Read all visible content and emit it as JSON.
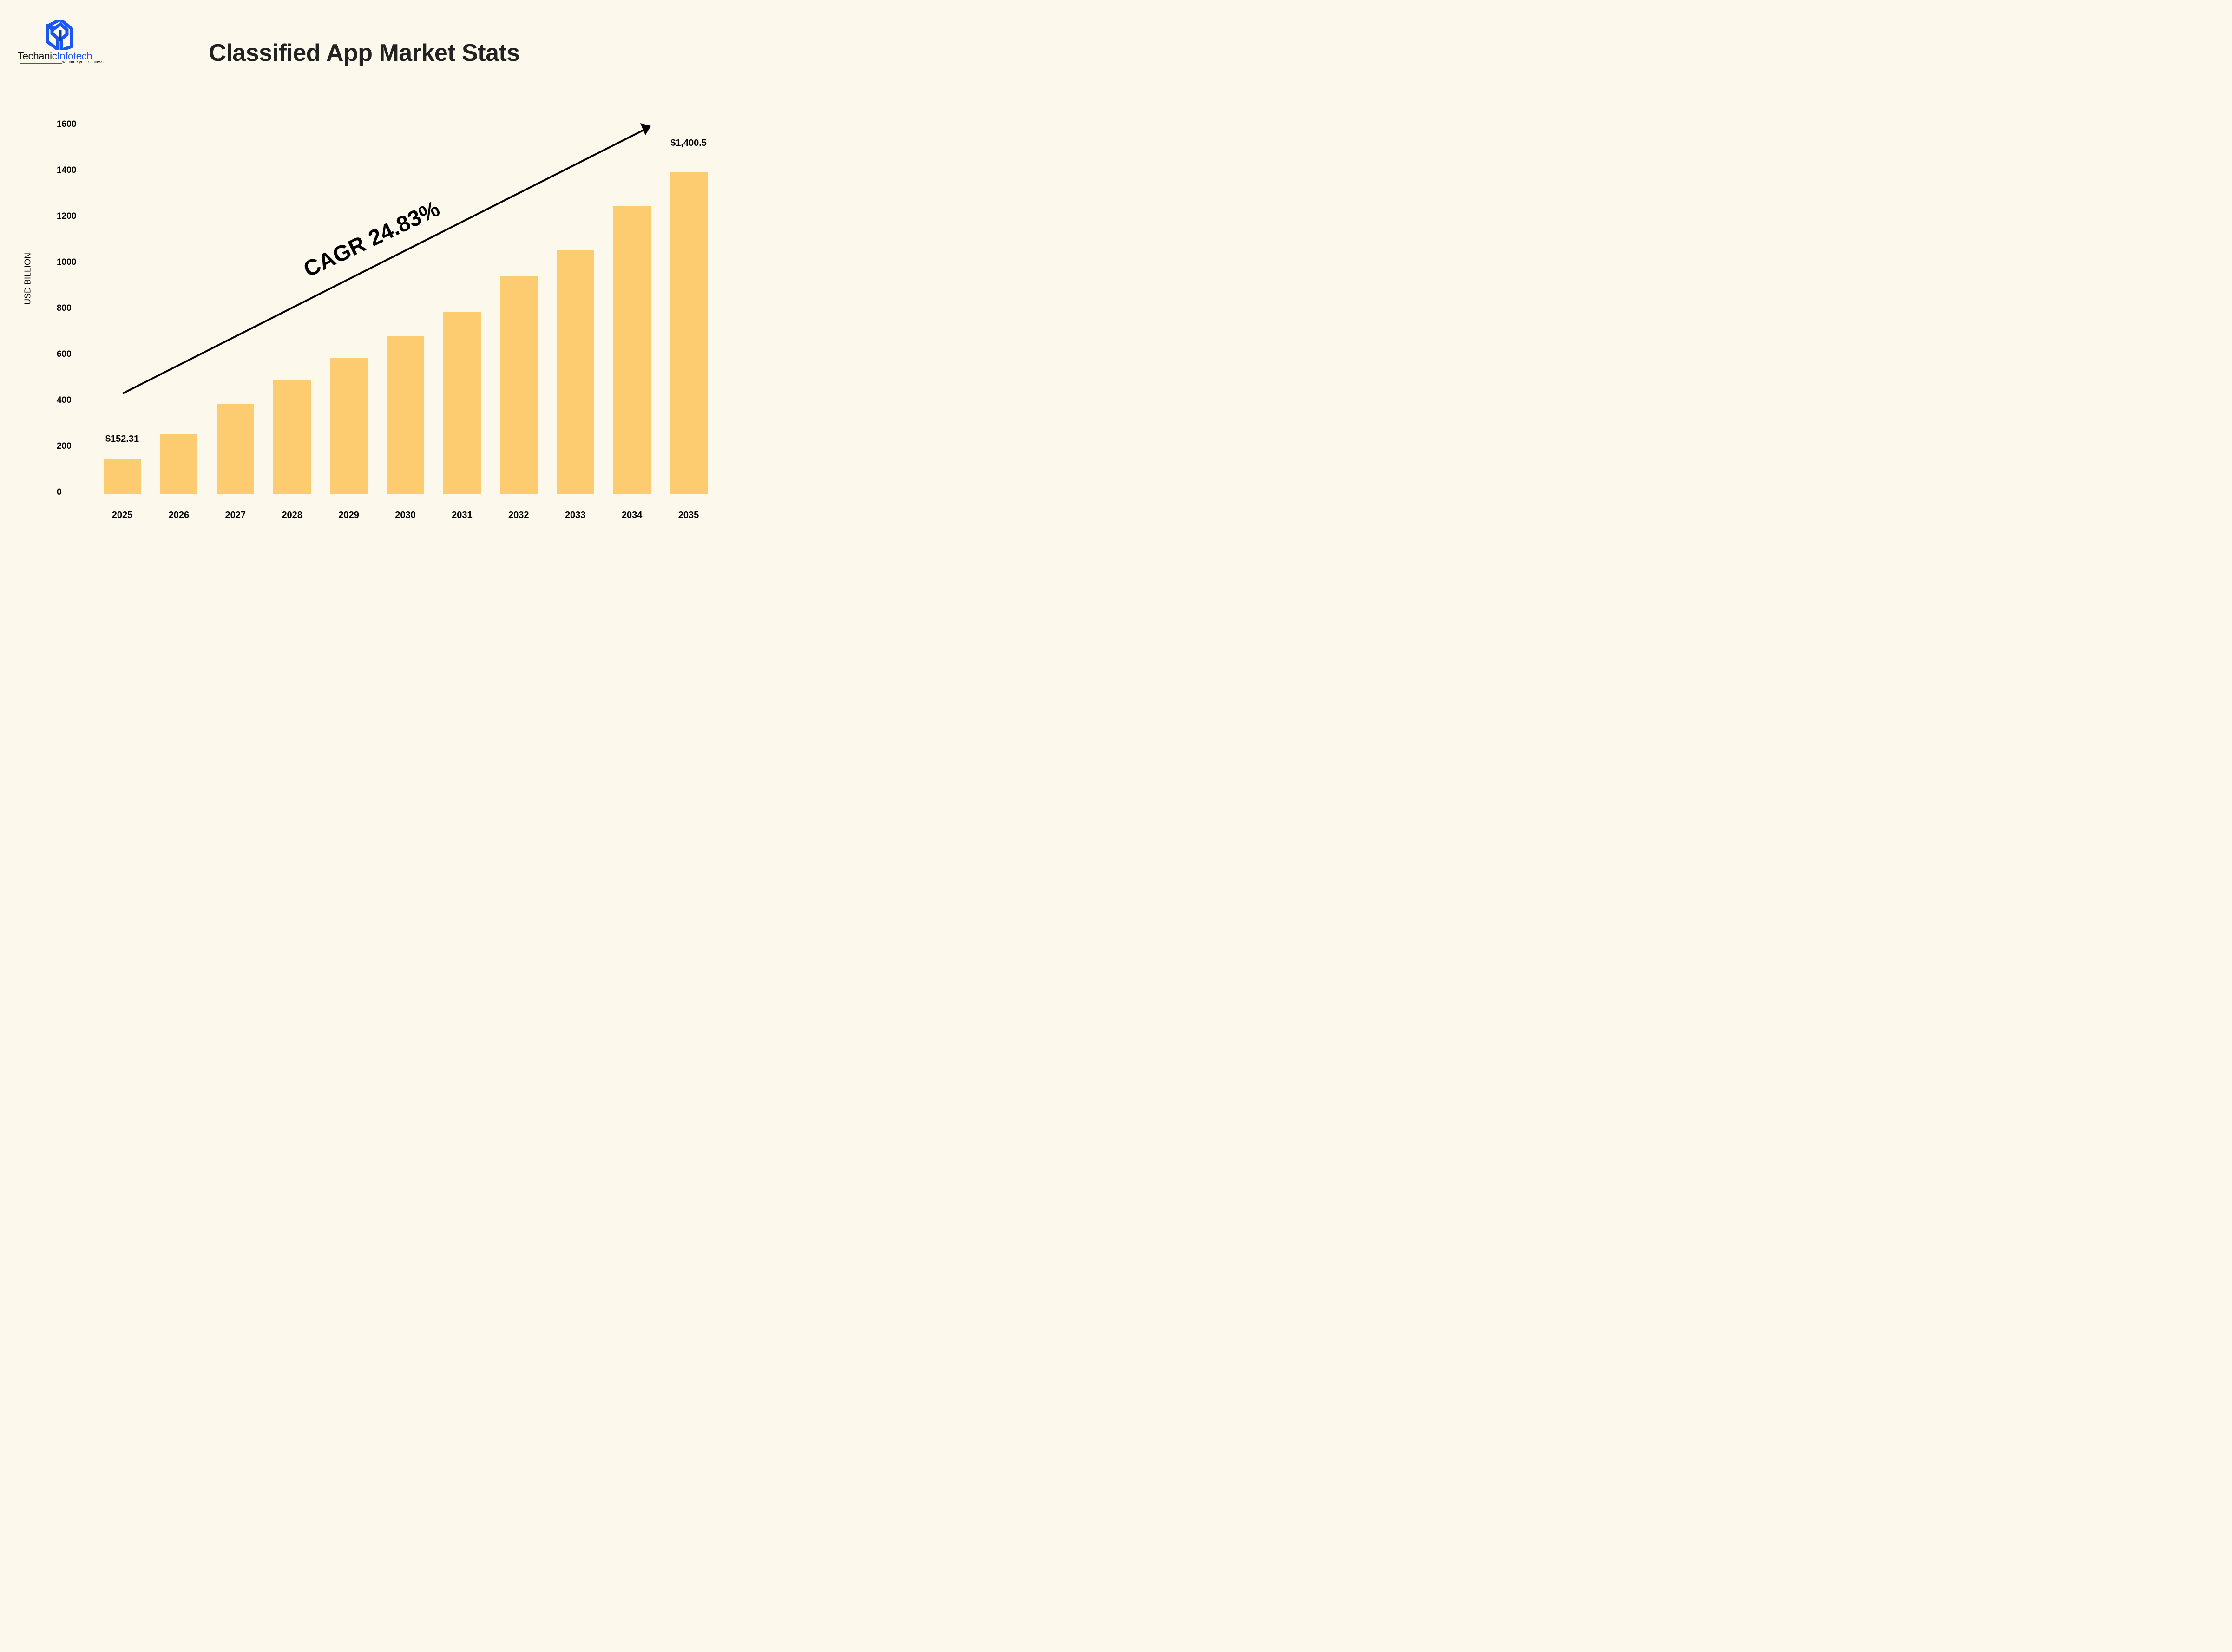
{
  "brand": {
    "name_part1": "Techanic",
    "name_part2": "Infotech",
    "tagline": "we code your success",
    "color": "#1a56f0"
  },
  "title": "Classified App Market Stats",
  "annotation": {
    "cagr": "CAGR 24.83%"
  },
  "y_axis": {
    "label": "USD BILLION",
    "ticks": [
      "1600",
      "1400",
      "1200",
      "1000",
      "800",
      "600",
      "400",
      "200",
      "0"
    ]
  },
  "value_labels": {
    "first": "$152.31",
    "last": "$1,400.5"
  },
  "colors": {
    "background": "#fdf8ec",
    "bar": "#fdcb70",
    "text": "#000000"
  },
  "chart_data": {
    "type": "bar",
    "title": "Classified App Market Stats",
    "xlabel": "",
    "ylabel": "USD BILLION",
    "ylim": [
      0,
      1600
    ],
    "yticks": [
      0,
      200,
      400,
      600,
      800,
      1000,
      1200,
      1400,
      1600
    ],
    "grid": false,
    "categories": [
      "2025",
      "2026",
      "2027",
      "2028",
      "2029",
      "2030",
      "2031",
      "2032",
      "2033",
      "2034",
      "2035"
    ],
    "values": [
      152.31,
      263,
      394,
      495,
      592,
      689,
      794,
      950,
      1063,
      1253,
      1400.5
    ],
    "data_labels": {
      "2025": "$152.31",
      "2035": "$1,400.5"
    },
    "annotations": [
      "CAGR 24.83%",
      "upward trend arrow from 2025 to 2035"
    ],
    "bar_color": "#fdcb70"
  }
}
